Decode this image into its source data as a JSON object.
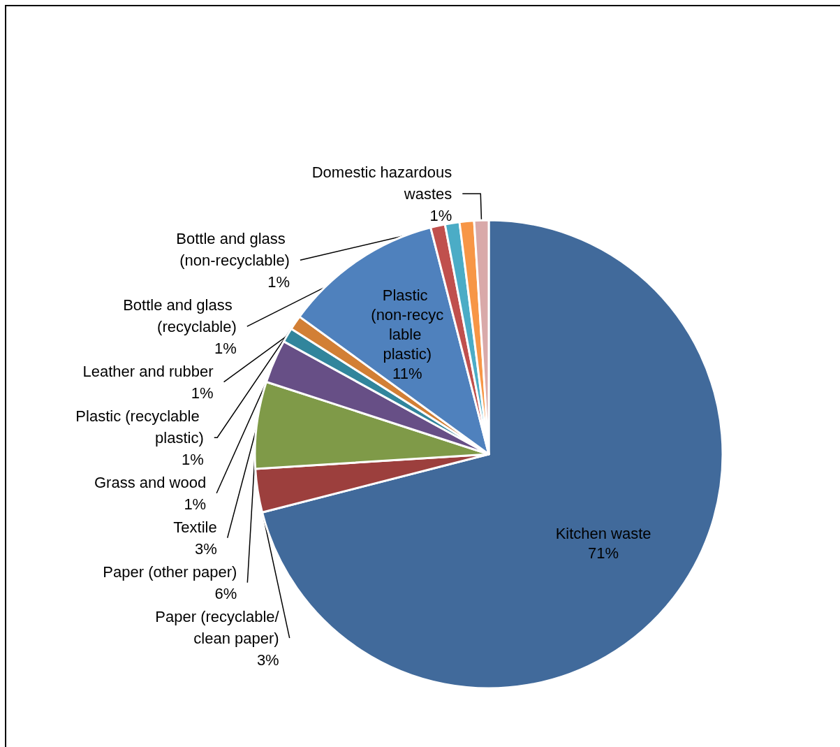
{
  "chart_data": {
    "type": "pie",
    "categories": [
      "Kitchen waste",
      "Paper (recyclable/clean paper)",
      "Paper (other paper)",
      "Textile",
      "Grass and wood",
      "Plastic (recyclable plastic)",
      "Plastic (non-recyclable plastic)",
      "Leather and rubber",
      "Bottle and glass (recyclable)",
      "Bottle and glass (non-recyclable)",
      "Domestic hazardous wastes"
    ],
    "values": [
      71,
      3,
      6,
      3,
      1,
      1,
      11,
      1,
      1,
      1,
      1
    ],
    "value_labels": [
      "71%",
      "3%",
      "6%",
      "3%",
      "1%",
      "1%",
      "11%",
      "1%",
      "1%",
      "1%",
      "1%"
    ],
    "colors": [
      "#416a9b",
      "#9c3f3d",
      "#7f9a48",
      "#674f86",
      "#31859c",
      "#d27f35",
      "#4f81bd",
      "#c0504d",
      "#4bacc6",
      "#f79646",
      "#d9a9a9"
    ]
  }
}
